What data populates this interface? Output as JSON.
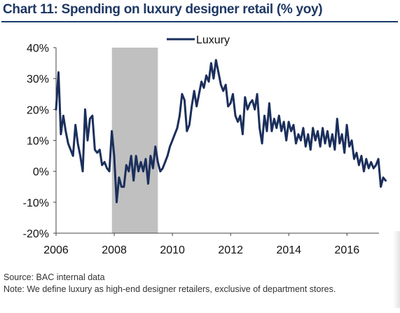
{
  "title": "Chart 11: Spending on luxury designer retail (% yoy)",
  "source": "Source: BAC internal data",
  "note": "Note: We define luxury as high-end designer retailers, exclusive of department stores.",
  "colors": {
    "title": "#1f3864",
    "series": "#1b2f5c",
    "recession_band": "#c0c0c0"
  },
  "chart_data": {
    "type": "line",
    "title": "Spending on luxury designer retail (% yoy)",
    "xlabel": "",
    "ylabel": "",
    "xlim": [
      2006.0,
      2017.1
    ],
    "ylim": [
      -20,
      40
    ],
    "x_ticks": [
      2006,
      2008,
      2010,
      2012,
      2014,
      2016
    ],
    "x_tick_labels": [
      "2006",
      "2008",
      "2010",
      "2012",
      "2014",
      "2016"
    ],
    "y_ticks": [
      -20,
      -10,
      0,
      10,
      20,
      30,
      40
    ],
    "y_tick_labels": [
      "-20%",
      "-10%",
      "0%",
      "10%",
      "20%",
      "30%",
      "40%"
    ],
    "grid": false,
    "legend": {
      "position": "top-center",
      "entries": [
        "Luxury"
      ]
    },
    "shaded_band": {
      "x_start": 2007.92,
      "x_end": 2009.5
    },
    "series": [
      {
        "name": "Luxury",
        "x_start": 2006.0,
        "x_step": 0.0833,
        "values": [
          20,
          32,
          12,
          18,
          13,
          9,
          7,
          5,
          15,
          9,
          5,
          0,
          20,
          10,
          17,
          18,
          7,
          6,
          7,
          2,
          3,
          1,
          0,
          13,
          5,
          -10,
          -2,
          -5,
          -5,
          2,
          0,
          5,
          -3,
          5,
          0,
          3,
          0,
          4,
          -4,
          5,
          1,
          8,
          3,
          0,
          1,
          3,
          5,
          8,
          10,
          12,
          14,
          18,
          25,
          23,
          13,
          15,
          21,
          26,
          21,
          25,
          29,
          27,
          31,
          29,
          35,
          30,
          36,
          32,
          28,
          26,
          28,
          21,
          22,
          25,
          18,
          16,
          18,
          12,
          24,
          20,
          22,
          23,
          20,
          25,
          14,
          9,
          18,
          13,
          22,
          13,
          17,
          14,
          18,
          13,
          16,
          10,
          16,
          13,
          15,
          9,
          12,
          10,
          14,
          8,
          12,
          7,
          14,
          10,
          13,
          8,
          14,
          9,
          13,
          8,
          12,
          7,
          17,
          9,
          12,
          6,
          15,
          8,
          10,
          4,
          6,
          2,
          5,
          0,
          4,
          1,
          3,
          1,
          2,
          4,
          -5,
          -2,
          -3
        ]
      }
    ]
  }
}
